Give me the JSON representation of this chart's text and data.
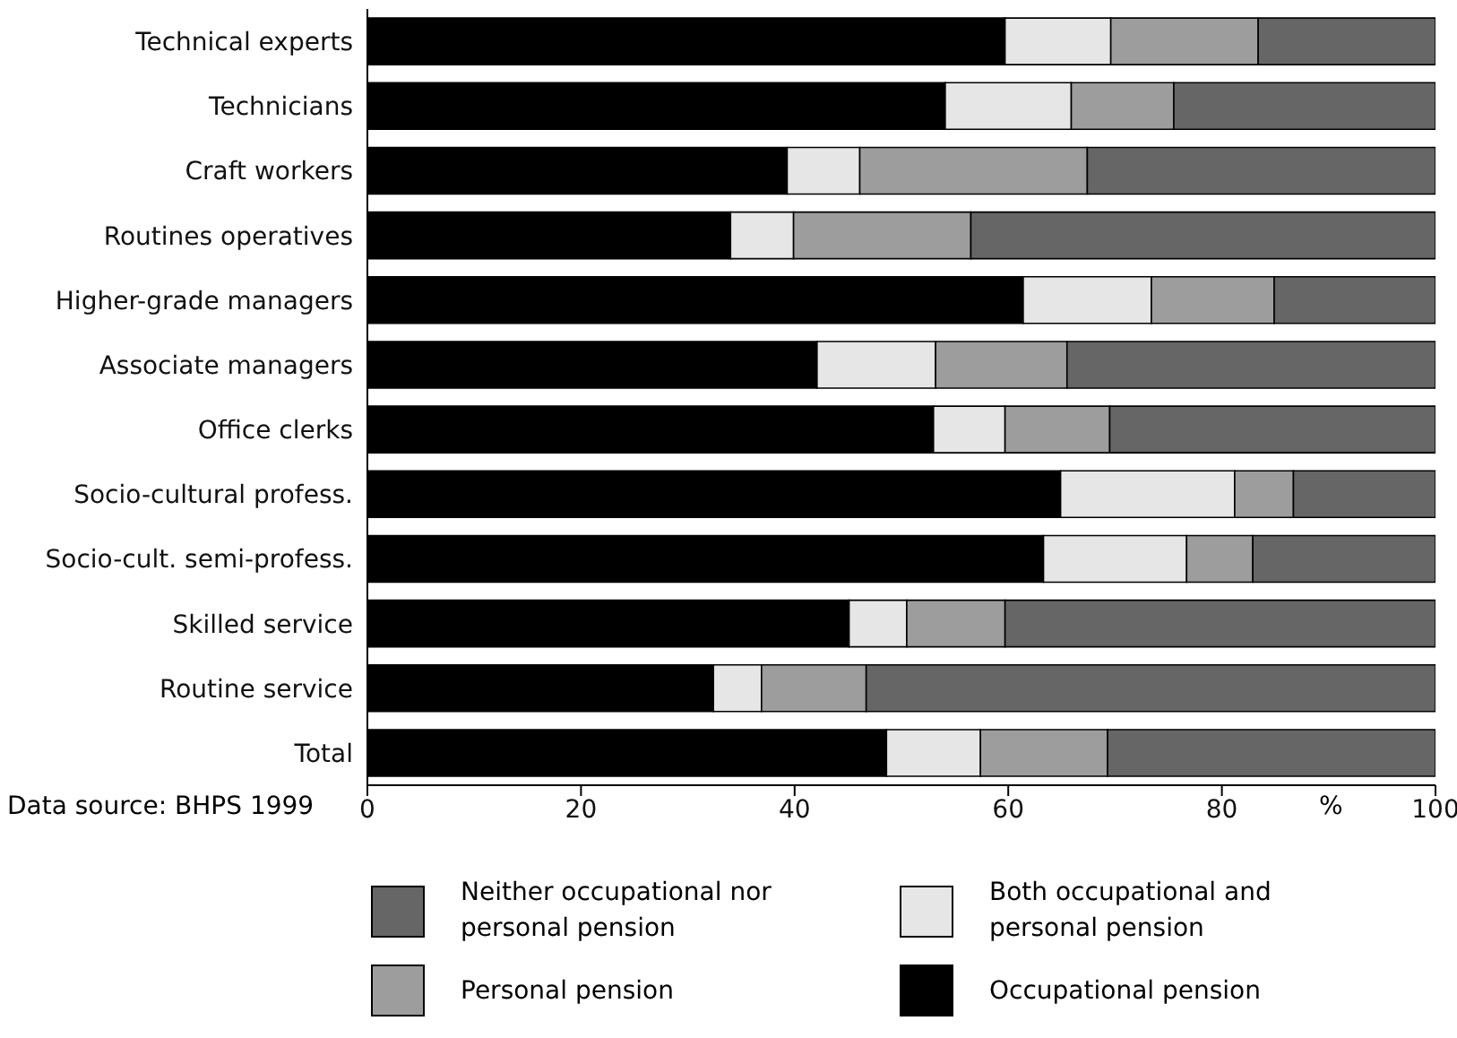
{
  "chart_data": {
    "type": "bar",
    "orientation": "horizontal",
    "stacked": true,
    "categories": [
      "Technical experts",
      "Technicians",
      "Craft workers",
      "Routines operatives",
      "Higher-grade managers",
      "Associate managers",
      "Office clerks",
      "Socio-cultural profess.",
      "Socio-cult. semi-profess.",
      "Skilled service",
      "Routine service",
      "Total"
    ],
    "series": [
      {
        "name": "Occupational pension",
        "color": "#000000",
        "values": [
          59.7,
          54.1,
          39.3,
          34.0,
          61.4,
          42.1,
          53.0,
          64.9,
          63.3,
          45.1,
          32.4,
          48.6
        ]
      },
      {
        "name": "Both occupational and personal pension",
        "color": "#e6e6e6",
        "values": [
          9.9,
          11.8,
          6.8,
          5.9,
          12.0,
          11.1,
          6.7,
          16.3,
          13.4,
          5.4,
          4.5,
          8.8
        ]
      },
      {
        "name": "Personal pension",
        "color": "#9d9d9d",
        "values": [
          13.8,
          9.6,
          21.3,
          16.6,
          11.5,
          12.3,
          9.8,
          5.5,
          6.2,
          9.2,
          9.8,
          11.9
        ]
      },
      {
        "name": "Neither occupational nor personal pension",
        "color": "#666666",
        "values": [
          16.6,
          24.5,
          32.6,
          43.5,
          15.1,
          34.5,
          30.5,
          13.3,
          17.1,
          40.3,
          53.3,
          30.7
        ]
      }
    ],
    "xlabel": "%",
    "xlim": [
      0,
      100
    ],
    "xticks": [
      0,
      20,
      40,
      60,
      80,
      100
    ],
    "grid": false,
    "legend": "bottom",
    "annotations": [
      "Data source: BHPS 1999"
    ]
  }
}
